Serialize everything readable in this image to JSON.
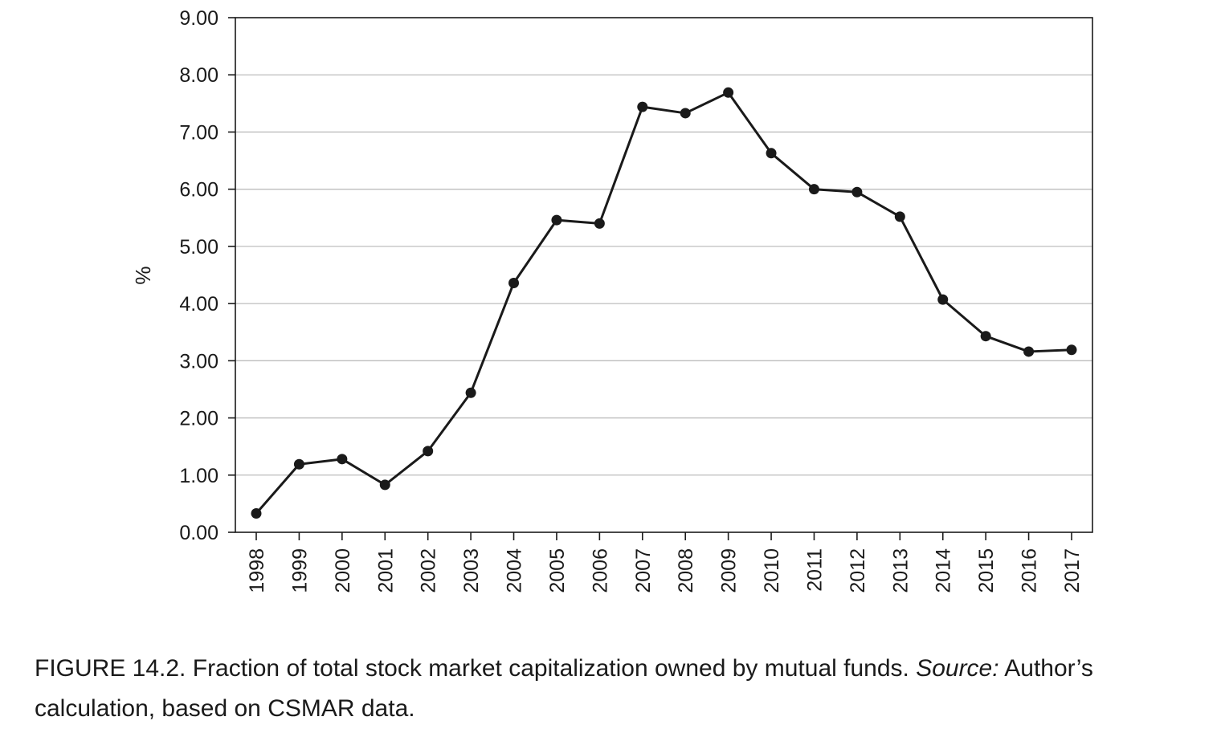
{
  "chart_data": {
    "type": "line",
    "title": "",
    "xlabel": "",
    "ylabel": "%",
    "x": [
      "1998",
      "1999",
      "2000",
      "2001",
      "2002",
      "2003",
      "2004",
      "2005",
      "2006",
      "2007",
      "2008",
      "2009",
      "2010",
      "2011",
      "2012",
      "2013",
      "2014",
      "2015",
      "2016",
      "2017"
    ],
    "series": [
      {
        "values": [
          0.33,
          1.19,
          1.28,
          0.83,
          1.42,
          2.44,
          4.36,
          5.46,
          5.4,
          7.44,
          7.33,
          7.69,
          6.63,
          6.0,
          5.95,
          5.52,
          4.07,
          3.43,
          3.16,
          3.19
        ]
      }
    ],
    "ylim": [
      0,
      9
    ],
    "yticks": [
      "0.00",
      "1.00",
      "2.00",
      "3.00",
      "4.00",
      "5.00",
      "6.00",
      "7.00",
      "8.00",
      "9.00"
    ],
    "grid": "horizontal",
    "legend": "none",
    "colors": {
      "line": "#1a1a1a",
      "marker": "#1a1a1a",
      "grid": "#bdbdbd",
      "axis": "#1a1a1a"
    }
  },
  "caption": {
    "figure_label": "FIGURE 14.2.",
    "text": " Fraction of total stock market capitalization owned by mutual funds. ",
    "source_label": "Source:",
    "source_text": " Author’s calculation, based on CSMAR data."
  }
}
